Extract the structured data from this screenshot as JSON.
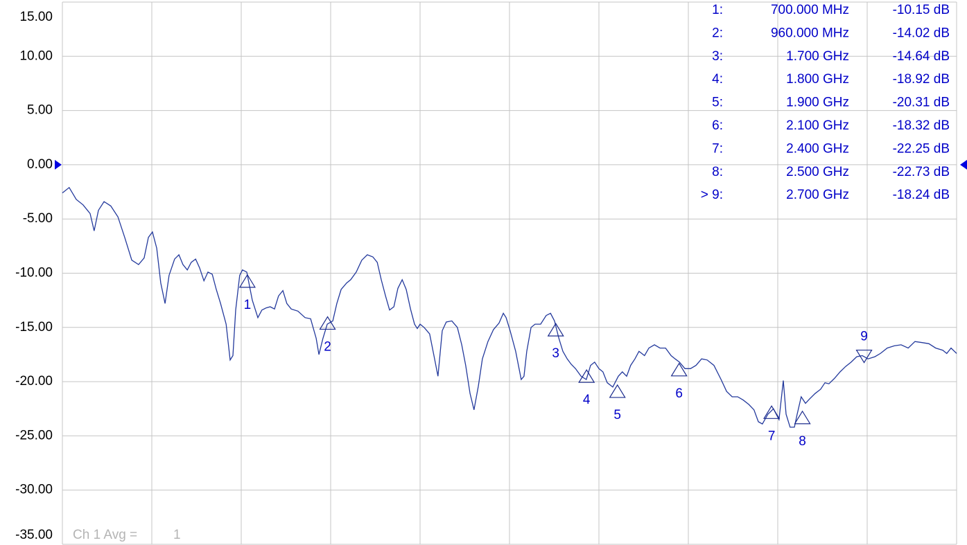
{
  "chart_data": {
    "type": "line",
    "ylim": [
      -35,
      15
    ],
    "xlim": [
      100,
      3000
    ],
    "yticks": [
      {
        "value": 15,
        "label": "15.00"
      },
      {
        "value": 10,
        "label": "10.00"
      },
      {
        "value": 5,
        "label": "5.00"
      },
      {
        "value": 0,
        "label": "0.00"
      },
      {
        "value": -5,
        "label": "-5.00"
      },
      {
        "value": -10,
        "label": "-10.00"
      },
      {
        "value": -15,
        "label": "-15.00"
      },
      {
        "value": -20,
        "label": "-20.00"
      },
      {
        "value": -25,
        "label": "-25.00"
      },
      {
        "value": -30,
        "label": "-30.00"
      },
      {
        "value": -35,
        "label": "-35.00"
      }
    ],
    "grid": true,
    "reference_level": 0,
    "reference_color": "#0000e0",
    "x": [
      100,
      122,
      145,
      167,
      190,
      203,
      217,
      235,
      257,
      280,
      302,
      325,
      347,
      365,
      379,
      392,
      406,
      419,
      433,
      446,
      464,
      478,
      491,
      505,
      518,
      532,
      545,
      559,
      572,
      586,
      599,
      613,
      631,
      644,
      653,
      662,
      675,
      684,
      698,
      716,
      734,
      747,
      761,
      774,
      788,
      801,
      815,
      828,
      842,
      864,
      887,
      905,
      923,
      932,
      945,
      959,
      977,
      990,
      1004,
      1022,
      1035,
      1053,
      1071,
      1089,
      1107,
      1121,
      1134,
      1148,
      1161,
      1175,
      1188,
      1202,
      1215,
      1229,
      1242,
      1251,
      1260,
      1273,
      1291,
      1305,
      1318,
      1332,
      1345,
      1363,
      1381,
      1395,
      1408,
      1422,
      1435,
      1449,
      1462,
      1480,
      1498,
      1516,
      1530,
      1539,
      1552,
      1570,
      1588,
      1597,
      1606,
      1620,
      1633,
      1651,
      1669,
      1683,
      1696,
      1710,
      1723,
      1737,
      1750,
      1764,
      1782,
      1799,
      1813,
      1826,
      1840,
      1853,
      1867,
      1885,
      1903,
      1916,
      1930,
      1943,
      1957,
      1970,
      1988,
      2002,
      2020,
      2038,
      2056,
      2074,
      2087,
      2101,
      2119,
      2137,
      2155,
      2173,
      2191,
      2213,
      2236,
      2254,
      2272,
      2290,
      2308,
      2326,
      2343,
      2357,
      2370,
      2388,
      2406,
      2424,
      2438,
      2447,
      2460,
      2474,
      2483,
      2496,
      2510,
      2523,
      2541,
      2559,
      2573,
      2586,
      2604,
      2622,
      2640,
      2658,
      2676,
      2694,
      2713,
      2735,
      2753,
      2775,
      2798,
      2820,
      2843,
      2865,
      2888,
      2910,
      2932,
      2955,
      2968,
      2982,
      3000
    ],
    "series": [
      {
        "color": "#23399c",
        "values": [
          -2.6,
          -2.1,
          -3.2,
          -3.7,
          -4.5,
          -6.1,
          -4.2,
          -3.4,
          -3.8,
          -4.8,
          -6.7,
          -8.8,
          -9.2,
          -8.6,
          -6.7,
          -6.2,
          -7.7,
          -10.9,
          -12.8,
          -10.2,
          -8.7,
          -8.3,
          -9.2,
          -9.7,
          -9.0,
          -8.7,
          -9.5,
          -10.7,
          -9.9,
          -10.1,
          -11.5,
          -12.8,
          -14.7,
          -18.0,
          -17.6,
          -13.4,
          -10.2,
          -9.7,
          -9.9,
          -12.5,
          -14.1,
          -13.4,
          -13.2,
          -13.1,
          -13.3,
          -12.1,
          -11.6,
          -12.8,
          -13.3,
          -13.5,
          -14.1,
          -14.2,
          -16.0,
          -17.5,
          -16.0,
          -14.7,
          -14.4,
          -12.8,
          -11.5,
          -10.9,
          -10.6,
          -9.9,
          -8.8,
          -8.3,
          -8.5,
          -9.0,
          -10.6,
          -12.1,
          -13.4,
          -13.1,
          -11.4,
          -10.6,
          -11.5,
          -13.3,
          -14.7,
          -15.1,
          -14.7,
          -15.0,
          -15.6,
          -17.6,
          -19.5,
          -15.3,
          -14.5,
          -14.4,
          -15.0,
          -16.6,
          -18.5,
          -21.1,
          -22.6,
          -20.4,
          -17.9,
          -16.3,
          -15.2,
          -14.6,
          -13.7,
          -14.1,
          -15.3,
          -17.2,
          -19.8,
          -19.5,
          -17.2,
          -15.0,
          -14.7,
          -14.7,
          -13.9,
          -13.7,
          -14.4,
          -16.0,
          -17.2,
          -17.9,
          -18.4,
          -18.8,
          -19.5,
          -19.8,
          -18.5,
          -18.2,
          -18.8,
          -19.1,
          -20.1,
          -20.5,
          -19.5,
          -19.1,
          -19.5,
          -18.5,
          -17.9,
          -17.2,
          -17.6,
          -16.9,
          -16.6,
          -16.9,
          -16.9,
          -17.6,
          -17.9,
          -18.2,
          -18.8,
          -18.8,
          -18.5,
          -17.9,
          -18.0,
          -18.5,
          -19.8,
          -20.9,
          -21.4,
          -21.4,
          -21.7,
          -22.1,
          -22.6,
          -23.7,
          -23.9,
          -23.0,
          -22.5,
          -23.5,
          -19.9,
          -23.0,
          -24.2,
          -24.2,
          -23.0,
          -21.4,
          -22.0,
          -21.6,
          -21.1,
          -20.7,
          -20.1,
          -20.2,
          -19.7,
          -19.1,
          -18.6,
          -18.2,
          -17.7,
          -17.6,
          -17.9,
          -17.7,
          -17.4,
          -16.9,
          -16.7,
          -16.6,
          -16.9,
          -16.3,
          -16.4,
          -16.5,
          -16.9,
          -17.1,
          -17.4,
          -16.9,
          -17.4
        ]
      }
    ],
    "markers": {
      "color": "#1a2a8c",
      "label_color": "#0000c8",
      "active": 8,
      "labels": [
        "1",
        "2",
        "3",
        "4",
        "5",
        "6",
        "7",
        "8",
        "9"
      ],
      "ids": [
        "1:",
        "2:",
        "3:",
        "4:",
        "5:",
        "6:",
        "7:",
        "8:",
        "> 9:"
      ],
      "x": [
        700,
        960,
        1700,
        1800,
        1900,
        2100,
        2400,
        2500,
        2700
      ],
      "x_labels": [
        "700.000 MHz",
        "960.000 MHz",
        "1.700 GHz",
        "1.800 GHz",
        "1.900 GHz",
        "2.100 GHz",
        "2.400 GHz",
        "2.500 GHz",
        "2.700 GHz"
      ],
      "values": [
        -10.15,
        -14.02,
        -14.64,
        -18.92,
        -20.31,
        -18.32,
        -22.25,
        -22.73,
        -18.24
      ],
      "value_labels": [
        "-10.15 dB",
        "-14.02 dB",
        "-14.64 dB",
        "-18.92 dB",
        "-20.31 dB",
        "-18.32 dB",
        "-22.25 dB",
        "-22.73 dB",
        "-18.24 dB"
      ]
    },
    "annotation": {
      "label": "Ch 1 Avg =",
      "value": "1"
    }
  }
}
